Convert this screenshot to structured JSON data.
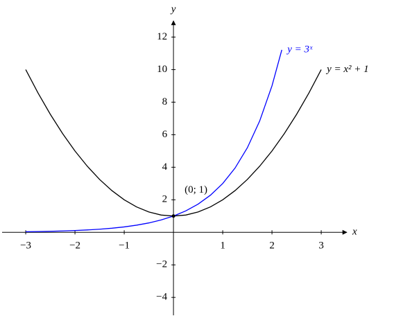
{
  "chart_data": {
    "type": "line",
    "xlabel": "x",
    "ylabel": "y",
    "xlim": [
      -3.48,
      3.52
    ],
    "ylim": [
      -5.1,
      13.0
    ],
    "xticks": [
      {
        "value": -3,
        "label": "−3"
      },
      {
        "value": -2,
        "label": "−2"
      },
      {
        "value": -1,
        "label": "−1"
      },
      1,
      2,
      3
    ],
    "yticks": [
      {
        "value": -4,
        "label": "−4"
      },
      {
        "value": -2,
        "label": "−2"
      },
      2,
      4,
      6,
      8,
      10,
      12
    ],
    "series": [
      {
        "name": "y = x² + 1",
        "color": "#000000",
        "x": [
          -3,
          -2.75,
          -2.5,
          -2.25,
          -2,
          -1.75,
          -1.5,
          -1.25,
          -1,
          -0.75,
          -0.5,
          -0.25,
          0,
          0.25,
          0.5,
          0.75,
          1,
          1.25,
          1.5,
          1.75,
          2,
          2.25,
          2.5,
          2.75,
          3
        ],
        "values": [
          10,
          8.5625,
          7.25,
          6.0625,
          5,
          4.0625,
          3.25,
          2.5625,
          2,
          1.5625,
          1.25,
          1.0625,
          1,
          1.0625,
          1.25,
          1.5625,
          2,
          2.5625,
          3.25,
          4.0625,
          5,
          6.0625,
          7.25,
          8.5625,
          10
        ]
      },
      {
        "name": "y = 3ˣ",
        "color": "#0000ff",
        "x": [
          -3,
          -2.75,
          -2.5,
          -2.25,
          -2,
          -1.75,
          -1.5,
          -1.25,
          -1,
          -0.75,
          -0.5,
          -0.25,
          0,
          0.25,
          0.5,
          0.75,
          1,
          1.25,
          1.5,
          1.75,
          2,
          2.2
        ],
        "values": [
          0.037,
          0.049,
          0.064,
          0.084,
          0.111,
          0.146,
          0.192,
          0.253,
          0.333,
          0.439,
          0.577,
          0.76,
          1,
          1.316,
          1.732,
          2.28,
          3,
          3.948,
          5.196,
          6.839,
          9,
          11.212
        ]
      }
    ],
    "point": {
      "x": 0,
      "y": 1,
      "label": "(0; 1)"
    }
  }
}
